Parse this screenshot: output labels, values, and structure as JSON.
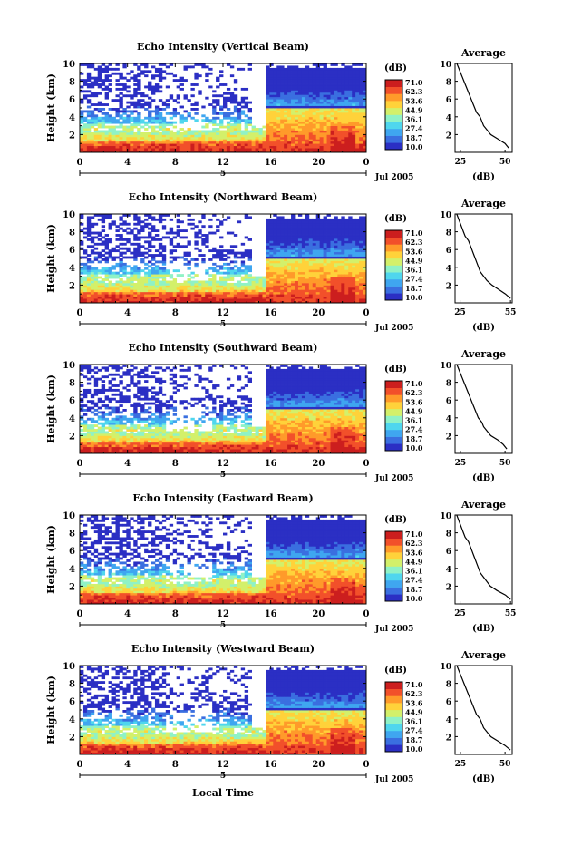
{
  "chart_data": [
    {
      "type": "heatmap",
      "title": "Echo Intensity (Vertical Beam)",
      "ylabel": "Height (km)",
      "ylim": [
        0,
        10
      ],
      "y_ticks": [
        "2",
        "4",
        "6",
        "8",
        "10"
      ],
      "x_ticks": [
        "0",
        "4",
        "8",
        "12",
        "16",
        "20",
        "0"
      ],
      "date_marker": "5",
      "date_label": "Jul 2005",
      "colorbar": {
        "unit": "(dB)",
        "ticks": [
          "71.0",
          "62.3",
          "53.6",
          "44.9",
          "36.1",
          "27.4",
          "18.7",
          "10.0"
        ]
      },
      "average_profile": {
        "title": "Average",
        "xlabel": "(dB)",
        "x_ticks": [
          "25",
          "50"
        ],
        "xlim": [
          22,
          54
        ],
        "y_ticks": [
          "2",
          "4",
          "6",
          "8",
          "10"
        ],
        "heights": [
          0.5,
          1,
          1.5,
          2,
          2.5,
          3,
          3.5,
          4,
          4.5,
          5,
          5.5,
          6,
          6.5,
          7,
          7.5,
          8,
          8.5,
          9,
          9.5,
          10
        ],
        "values": [
          52,
          50,
          46,
          42,
          40,
          38,
          37,
          36,
          34,
          33,
          32,
          31,
          30,
          29,
          28,
          27,
          26,
          25,
          24,
          23
        ]
      }
    },
    {
      "type": "heatmap",
      "title": "Echo Intensity (Northward Beam)",
      "ylabel": "Height (km)",
      "ylim": [
        0,
        10
      ],
      "y_ticks": [
        "2",
        "4",
        "6",
        "8",
        "10"
      ],
      "x_ticks": [
        "0",
        "4",
        "8",
        "12",
        "16",
        "20",
        "0"
      ],
      "date_marker": "5",
      "date_label": "Jul 2005",
      "colorbar": {
        "unit": "(dB)",
        "ticks": [
          "71.0",
          "62.3",
          "53.6",
          "44.9",
          "36.1",
          "27.4",
          "18.7",
          "10.0"
        ]
      },
      "average_profile": {
        "title": "Average",
        "xlabel": "(dB)",
        "x_ticks": [
          "25",
          "55"
        ],
        "xlim": [
          22,
          56
        ],
        "y_ticks": [
          "2",
          "4",
          "6",
          "8",
          "10"
        ],
        "heights": [
          0.5,
          1,
          1.5,
          2,
          2.5,
          3,
          3.5,
          4,
          4.5,
          5,
          5.5,
          6,
          6.5,
          7,
          7.5,
          8,
          8.5,
          9,
          9.5,
          10
        ],
        "values": [
          55,
          52,
          48,
          44,
          41,
          39,
          37,
          36,
          35,
          34,
          33,
          32,
          31,
          30,
          28,
          27,
          26,
          25,
          24,
          23
        ]
      }
    },
    {
      "type": "heatmap",
      "title": "Echo Intensity (Southward Beam)",
      "ylabel": "Height (km)",
      "ylim": [
        0,
        10
      ],
      "y_ticks": [
        "2",
        "4",
        "6",
        "8",
        "10"
      ],
      "x_ticks": [
        "0",
        "4",
        "8",
        "12",
        "16",
        "20",
        "0"
      ],
      "date_marker": "5",
      "date_label": "Jul 2005",
      "colorbar": {
        "unit": "(dB)",
        "ticks": [
          "71.0",
          "62.3",
          "53.6",
          "44.9",
          "36.1",
          "27.4",
          "18.7",
          "10.0"
        ]
      },
      "average_profile": {
        "title": "Average",
        "xlabel": "(dB)",
        "x_ticks": [
          "25",
          "50"
        ],
        "xlim": [
          22,
          54
        ],
        "y_ticks": [
          "2",
          "4",
          "6",
          "8",
          "10"
        ],
        "heights": [
          0.5,
          1,
          1.5,
          2,
          2.5,
          3,
          3.5,
          4,
          4.5,
          5,
          5.5,
          6,
          6.5,
          7,
          7.5,
          8,
          8.5,
          9,
          9.5,
          10
        ],
        "values": [
          51,
          49,
          46,
          42,
          40,
          38,
          37,
          35,
          34,
          33,
          32,
          31,
          30,
          29,
          28,
          27,
          26,
          25,
          24,
          23
        ]
      }
    },
    {
      "type": "heatmap",
      "title": "Echo Intensity (Eastward Beam)",
      "ylabel": "Height (km)",
      "ylim": [
        0,
        10
      ],
      "y_ticks": [
        "2",
        "4",
        "6",
        "8",
        "10"
      ],
      "x_ticks": [
        "0",
        "4",
        "8",
        "12",
        "16",
        "20",
        "0"
      ],
      "date_marker": "5",
      "date_label": "Jul 2005",
      "colorbar": {
        "unit": "(dB)",
        "ticks": [
          "71.0",
          "62.3",
          "53.6",
          "44.9",
          "36.1",
          "27.4",
          "18.7",
          "10.0"
        ]
      },
      "average_profile": {
        "title": "Average",
        "xlabel": "(dB)",
        "x_ticks": [
          "25",
          "55"
        ],
        "xlim": [
          22,
          56
        ],
        "y_ticks": [
          "2",
          "4",
          "6",
          "8",
          "10"
        ],
        "heights": [
          0.5,
          1,
          1.5,
          2,
          2.5,
          3,
          3.5,
          4,
          4.5,
          5,
          5.5,
          6,
          6.5,
          7,
          7.5,
          8,
          8.5,
          9,
          9.5,
          10
        ],
        "values": [
          55,
          52,
          47,
          43,
          41,
          39,
          37,
          36,
          35,
          34,
          33,
          32,
          31,
          30,
          28,
          27,
          26,
          25,
          24,
          23
        ]
      }
    },
    {
      "type": "heatmap",
      "title": "Echo Intensity (Westward Beam)",
      "ylabel": "Height (km)",
      "ylim": [
        0,
        10
      ],
      "y_ticks": [
        "2",
        "4",
        "6",
        "8",
        "10"
      ],
      "x_ticks": [
        "0",
        "4",
        "8",
        "12",
        "16",
        "20",
        "0"
      ],
      "date_marker": "5",
      "date_label": "Jul 2005",
      "xlabel": "Local Time",
      "colorbar": {
        "unit": "(dB)",
        "ticks": [
          "71.0",
          "62.3",
          "53.6",
          "44.9",
          "36.1",
          "27.4",
          "18.7",
          "10.0"
        ]
      },
      "average_profile": {
        "title": "Average",
        "xlabel": "(dB)",
        "x_ticks": [
          "25",
          "50"
        ],
        "xlim": [
          22,
          54
        ],
        "y_ticks": [
          "2",
          "4",
          "6",
          "8",
          "10"
        ],
        "heights": [
          0.5,
          1,
          1.5,
          2,
          2.5,
          3,
          3.5,
          4,
          4.5,
          5,
          5.5,
          6,
          6.5,
          7,
          7.5,
          8,
          8.5,
          9,
          9.5,
          10
        ],
        "values": [
          53,
          50,
          46,
          42,
          40,
          38,
          37,
          36,
          34,
          33,
          32,
          31,
          30,
          29,
          28,
          27,
          26,
          25,
          24,
          23
        ]
      }
    }
  ],
  "colors": {
    "colormap": [
      "#2b2fc4",
      "#3a6fe0",
      "#3fa6f0",
      "#4fd6ee",
      "#8ff2c6",
      "#d3f06a",
      "#ffd23a",
      "#ff9a2a",
      "#f2502a",
      "#cc1e1e"
    ]
  }
}
